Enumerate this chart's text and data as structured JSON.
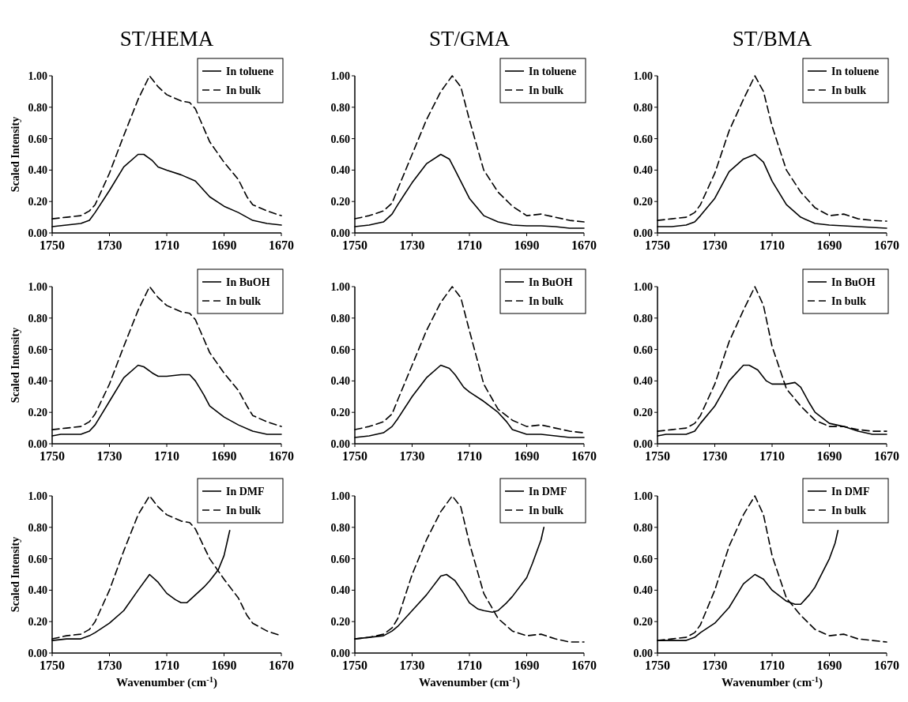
{
  "chart_data": [
    {
      "type": "line",
      "title": "ST/HEMA",
      "ylabel": "Scaled Intensity",
      "xlim": [
        1750,
        1670
      ],
      "xticks": [
        1750,
        1730,
        1710,
        1690,
        1670
      ],
      "ylim": [
        0,
        1
      ],
      "yticks": [
        {
          "value": 0,
          "label": "0.00"
        },
        {
          "value": 0.2,
          "label": "0.20"
        },
        {
          "value": 0.4,
          "label": "0.40"
        },
        {
          "value": 0.6,
          "label": "0.60"
        },
        {
          "value": 0.8,
          "label": "0.80"
        },
        {
          "value": 1,
          "label": "1.00"
        }
      ],
      "legend": "top right",
      "grid": false,
      "marker": "none",
      "series": [
        {
          "name": "In toluene",
          "color": "#000000",
          "line_style": "solid",
          "x": [
            1750,
            1745,
            1740,
            1737,
            1735,
            1730,
            1725,
            1720,
            1718,
            1715,
            1713,
            1710,
            1705,
            1700,
            1697,
            1695,
            1690,
            1685,
            1680,
            1675,
            1670
          ],
          "values": [
            0.04,
            0.05,
            0.06,
            0.08,
            0.13,
            0.27,
            0.42,
            0.5,
            0.5,
            0.46,
            0.42,
            0.4,
            0.37,
            0.33,
            0.27,
            0.23,
            0.17,
            0.13,
            0.08,
            0.06,
            0.05
          ]
        },
        {
          "name": "In bulk",
          "color": "#000000",
          "line_style": "dashed",
          "x": [
            1750,
            1745,
            1740,
            1737,
            1735,
            1730,
            1725,
            1720,
            1716,
            1713,
            1710,
            1705,
            1702,
            1700,
            1695,
            1690,
            1685,
            1682,
            1680,
            1675,
            1670
          ],
          "values": [
            0.09,
            0.1,
            0.11,
            0.14,
            0.18,
            0.38,
            0.62,
            0.85,
            1,
            0.93,
            0.88,
            0.84,
            0.83,
            0.79,
            0.58,
            0.45,
            0.34,
            0.23,
            0.18,
            0.14,
            0.11
          ]
        }
      ]
    },
    {
      "type": "line",
      "title": "ST/GMA",
      "xlim": [
        1750,
        1670
      ],
      "xticks": [
        1750,
        1730,
        1710,
        1690,
        1670
      ],
      "ylim": [
        0,
        1
      ],
      "yticks": [
        {
          "value": 0,
          "label": "0.00"
        },
        {
          "value": 0.2,
          "label": "0.20"
        },
        {
          "value": 0.4,
          "label": "0.40"
        },
        {
          "value": 0.6,
          "label": "0.60"
        },
        {
          "value": 0.8,
          "label": "0.80"
        },
        {
          "value": 1,
          "label": "1.00"
        }
      ],
      "legend": "top right",
      "grid": false,
      "marker": "none",
      "series": [
        {
          "name": "In toluene",
          "color": "#000000",
          "line_style": "solid",
          "x": [
            1750,
            1745,
            1740,
            1737,
            1735,
            1730,
            1725,
            1720,
            1717,
            1715,
            1710,
            1705,
            1700,
            1695,
            1690,
            1685,
            1680,
            1675,
            1670
          ],
          "values": [
            0.04,
            0.05,
            0.07,
            0.12,
            0.18,
            0.32,
            0.44,
            0.5,
            0.47,
            0.4,
            0.22,
            0.11,
            0.07,
            0.05,
            0.045,
            0.045,
            0.04,
            0.03,
            0.03
          ]
        },
        {
          "name": "In bulk",
          "color": "#000000",
          "line_style": "dashed",
          "x": [
            1750,
            1745,
            1740,
            1737,
            1735,
            1730,
            1725,
            1720,
            1716,
            1713,
            1710,
            1705,
            1700,
            1695,
            1690,
            1685,
            1680,
            1675,
            1670
          ],
          "values": [
            0.09,
            0.11,
            0.14,
            0.19,
            0.28,
            0.5,
            0.72,
            0.9,
            1,
            0.93,
            0.72,
            0.4,
            0.26,
            0.17,
            0.11,
            0.12,
            0.1,
            0.08,
            0.07
          ]
        }
      ]
    },
    {
      "type": "line",
      "title": "ST/BMA",
      "xlim": [
        1750,
        1670
      ],
      "xticks": [
        1750,
        1730,
        1710,
        1690,
        1670
      ],
      "ylim": [
        0,
        1
      ],
      "yticks": [
        {
          "value": 0,
          "label": "0.00"
        },
        {
          "value": 0.2,
          "label": "0.20"
        },
        {
          "value": 0.4,
          "label": "0.40"
        },
        {
          "value": 0.6,
          "label": "0.60"
        },
        {
          "value": 0.8,
          "label": "0.80"
        },
        {
          "value": 1,
          "label": "1.00"
        }
      ],
      "legend": "top right",
      "grid": false,
      "marker": "none",
      "series": [
        {
          "name": "In toluene",
          "color": "#000000",
          "line_style": "solid",
          "x": [
            1750,
            1745,
            1740,
            1737,
            1735,
            1730,
            1725,
            1720,
            1716,
            1713,
            1710,
            1705,
            1700,
            1695,
            1690,
            1685,
            1680,
            1675,
            1670
          ],
          "values": [
            0.04,
            0.04,
            0.05,
            0.07,
            0.11,
            0.22,
            0.39,
            0.47,
            0.5,
            0.45,
            0.33,
            0.18,
            0.1,
            0.06,
            0.05,
            0.045,
            0.04,
            0.035,
            0.03
          ]
        },
        {
          "name": "In bulk",
          "color": "#000000",
          "line_style": "dashed",
          "x": [
            1750,
            1745,
            1740,
            1737,
            1735,
            1730,
            1725,
            1720,
            1716,
            1713,
            1710,
            1705,
            1700,
            1695,
            1690,
            1685,
            1680,
            1675,
            1670
          ],
          "values": [
            0.08,
            0.09,
            0.1,
            0.13,
            0.18,
            0.38,
            0.65,
            0.85,
            1,
            0.9,
            0.68,
            0.4,
            0.26,
            0.16,
            0.11,
            0.12,
            0.09,
            0.08,
            0.075
          ]
        }
      ]
    },
    {
      "type": "line",
      "ylabel": "Scaled Intensity",
      "xlim": [
        1750,
        1670
      ],
      "xticks": [
        1750,
        1730,
        1710,
        1690,
        1670
      ],
      "ylim": [
        0,
        1
      ],
      "yticks": [
        {
          "value": 0,
          "label": "0.00"
        },
        {
          "value": 0.2,
          "label": "0.20"
        },
        {
          "value": 0.4,
          "label": "0.40"
        },
        {
          "value": 0.6,
          "label": "0.60"
        },
        {
          "value": 0.8,
          "label": "0.80"
        },
        {
          "value": 1,
          "label": "1.00"
        }
      ],
      "legend": "top right",
      "grid": false,
      "marker": "none",
      "series": [
        {
          "name": "In BuOH",
          "color": "#000000",
          "line_style": "solid",
          "x": [
            1750,
            1747,
            1740,
            1737,
            1735,
            1730,
            1725,
            1720,
            1718,
            1715,
            1713,
            1710,
            1705,
            1702,
            1700,
            1697,
            1695,
            1690,
            1687,
            1685,
            1680,
            1675,
            1670
          ],
          "values": [
            0.05,
            0.06,
            0.06,
            0.08,
            0.12,
            0.27,
            0.42,
            0.5,
            0.49,
            0.45,
            0.43,
            0.43,
            0.44,
            0.44,
            0.4,
            0.31,
            0.24,
            0.17,
            0.14,
            0.12,
            0.08,
            0.06,
            0.06
          ]
        },
        {
          "name": "In bulk",
          "color": "#000000",
          "line_style": "dashed",
          "x": [
            1750,
            1745,
            1740,
            1737,
            1735,
            1730,
            1725,
            1720,
            1716,
            1713,
            1710,
            1705,
            1702,
            1700,
            1695,
            1690,
            1685,
            1682,
            1680,
            1675,
            1670
          ],
          "values": [
            0.09,
            0.1,
            0.11,
            0.14,
            0.19,
            0.38,
            0.62,
            0.85,
            1,
            0.93,
            0.88,
            0.84,
            0.83,
            0.79,
            0.58,
            0.45,
            0.34,
            0.24,
            0.18,
            0.14,
            0.11
          ]
        }
      ]
    },
    {
      "type": "line",
      "xlim": [
        1750,
        1670
      ],
      "xticks": [
        1750,
        1730,
        1710,
        1690,
        1670
      ],
      "ylim": [
        0,
        1
      ],
      "yticks": [
        {
          "value": 0,
          "label": "0.00"
        },
        {
          "value": 0.2,
          "label": "0.20"
        },
        {
          "value": 0.4,
          "label": "0.40"
        },
        {
          "value": 0.6,
          "label": "0.60"
        },
        {
          "value": 0.8,
          "label": "0.80"
        },
        {
          "value": 1,
          "label": "1.00"
        }
      ],
      "legend": "top right",
      "grid": false,
      "marker": "none",
      "series": [
        {
          "name": "In BuOH",
          "color": "#000000",
          "line_style": "solid",
          "x": [
            1750,
            1745,
            1740,
            1737,
            1735,
            1730,
            1725,
            1720,
            1717,
            1715,
            1712,
            1710,
            1705,
            1700,
            1697,
            1695,
            1690,
            1685,
            1680,
            1675,
            1670
          ],
          "values": [
            0.04,
            0.05,
            0.07,
            0.11,
            0.16,
            0.3,
            0.42,
            0.5,
            0.48,
            0.44,
            0.36,
            0.33,
            0.27,
            0.2,
            0.14,
            0.09,
            0.06,
            0.06,
            0.05,
            0.04,
            0.04
          ]
        },
        {
          "name": "In bulk",
          "color": "#000000",
          "line_style": "dashed",
          "x": [
            1750,
            1745,
            1740,
            1737,
            1735,
            1730,
            1725,
            1720,
            1716,
            1713,
            1710,
            1705,
            1700,
            1695,
            1690,
            1685,
            1680,
            1675,
            1670
          ],
          "values": [
            0.09,
            0.11,
            0.14,
            0.19,
            0.28,
            0.5,
            0.72,
            0.9,
            1,
            0.93,
            0.72,
            0.38,
            0.22,
            0.15,
            0.11,
            0.12,
            0.1,
            0.08,
            0.07
          ]
        }
      ]
    },
    {
      "type": "line",
      "xlim": [
        1750,
        1670
      ],
      "xticks": [
        1750,
        1730,
        1710,
        1690,
        1670
      ],
      "ylim": [
        0,
        1
      ],
      "yticks": [
        {
          "value": 0,
          "label": "0.00"
        },
        {
          "value": 0.2,
          "label": "0.20"
        },
        {
          "value": 0.4,
          "label": "0.40"
        },
        {
          "value": 0.6,
          "label": "0.60"
        },
        {
          "value": 0.8,
          "label": "0.80"
        },
        {
          "value": 1,
          "label": "1.00"
        }
      ],
      "legend": "top right",
      "grid": false,
      "marker": "none",
      "series": [
        {
          "name": "In BuOH",
          "color": "#000000",
          "line_style": "solid",
          "x": [
            1750,
            1747,
            1740,
            1737,
            1735,
            1730,
            1725,
            1720,
            1718,
            1715,
            1712,
            1710,
            1705,
            1702,
            1700,
            1697,
            1695,
            1690,
            1685,
            1680,
            1675,
            1670
          ],
          "values": [
            0.05,
            0.06,
            0.06,
            0.08,
            0.13,
            0.24,
            0.4,
            0.5,
            0.5,
            0.47,
            0.4,
            0.38,
            0.38,
            0.39,
            0.36,
            0.26,
            0.2,
            0.13,
            0.11,
            0.08,
            0.06,
            0.06
          ]
        },
        {
          "name": "In bulk",
          "color": "#000000",
          "line_style": "dashed",
          "x": [
            1750,
            1745,
            1740,
            1737,
            1735,
            1730,
            1725,
            1720,
            1716,
            1713,
            1710,
            1705,
            1700,
            1695,
            1690,
            1685,
            1680,
            1675,
            1670
          ],
          "values": [
            0.08,
            0.09,
            0.1,
            0.13,
            0.18,
            0.38,
            0.65,
            0.85,
            1,
            0.88,
            0.62,
            0.35,
            0.24,
            0.15,
            0.11,
            0.11,
            0.09,
            0.08,
            0.08
          ]
        }
      ]
    },
    {
      "type": "line",
      "ylabel": "Scaled Intensity",
      "xlabel": "Wavenumber (cm$^{-1}$)",
      "xlim": [
        1750,
        1670
      ],
      "xticks": [
        1750,
        1730,
        1710,
        1690,
        1670
      ],
      "ylim": [
        0,
        1
      ],
      "yticks": [
        {
          "value": 0,
          "label": "0.00"
        },
        {
          "value": 0.2,
          "label": "0.20"
        },
        {
          "value": 0.4,
          "label": "0.40"
        },
        {
          "value": 0.6,
          "label": "0.60"
        },
        {
          "value": 0.8,
          "label": "0.80"
        },
        {
          "value": 1,
          "label": "1.00"
        }
      ],
      "legend": "top right",
      "grid": false,
      "marker": "none",
      "series": [
        {
          "name": "In DMF",
          "color": "#000000",
          "line_style": "solid",
          "x": [
            1750,
            1745,
            1740,
            1737,
            1735,
            1730,
            1725,
            1720,
            1716,
            1713,
            1710,
            1707,
            1705,
            1703,
            1700,
            1697,
            1695,
            1692,
            1690,
            1688
          ],
          "values": [
            0.08,
            0.09,
            0.09,
            0.11,
            0.13,
            0.19,
            0.27,
            0.4,
            0.5,
            0.45,
            0.38,
            0.34,
            0.32,
            0.32,
            0.37,
            0.42,
            0.46,
            0.53,
            0.62,
            0.78
          ]
        },
        {
          "name": "In bulk",
          "color": "#000000",
          "line_style": "dashed",
          "x": [
            1750,
            1745,
            1740,
            1737,
            1735,
            1730,
            1725,
            1720,
            1716,
            1713,
            1710,
            1705,
            1702,
            1700,
            1695,
            1690,
            1685,
            1682,
            1680,
            1675,
            1670
          ],
          "values": [
            0.09,
            0.11,
            0.12,
            0.15,
            0.2,
            0.4,
            0.65,
            0.88,
            1,
            0.93,
            0.88,
            0.84,
            0.83,
            0.79,
            0.6,
            0.47,
            0.35,
            0.24,
            0.19,
            0.14,
            0.11
          ]
        }
      ]
    },
    {
      "type": "line",
      "xlabel": "Wavenumber (cm$^{-1}$)",
      "xlim": [
        1750,
        1670
      ],
      "xticks": [
        1750,
        1730,
        1710,
        1690,
        1670
      ],
      "ylim": [
        0,
        1
      ],
      "yticks": [
        {
          "value": 0,
          "label": "0.00"
        },
        {
          "value": 0.2,
          "label": "0.20"
        },
        {
          "value": 0.4,
          "label": "0.40"
        },
        {
          "value": 0.6,
          "label": "0.60"
        },
        {
          "value": 0.8,
          "label": "0.80"
        },
        {
          "value": 1,
          "label": "1.00"
        }
      ],
      "legend": "top right",
      "grid": false,
      "marker": "none",
      "series": [
        {
          "name": "In DMF",
          "color": "#000000",
          "line_style": "solid",
          "x": [
            1750,
            1745,
            1740,
            1737,
            1735,
            1730,
            1725,
            1720,
            1718,
            1715,
            1712,
            1710,
            1707,
            1705,
            1702,
            1700,
            1697,
            1695,
            1690,
            1688,
            1685,
            1684
          ],
          "values": [
            0.09,
            0.1,
            0.11,
            0.14,
            0.17,
            0.27,
            0.37,
            0.49,
            0.5,
            0.46,
            0.38,
            0.32,
            0.28,
            0.27,
            0.26,
            0.27,
            0.32,
            0.36,
            0.48,
            0.57,
            0.72,
            0.8
          ]
        },
        {
          "name": "In bulk",
          "color": "#000000",
          "line_style": "dashed",
          "x": [
            1750,
            1745,
            1740,
            1737,
            1735,
            1730,
            1725,
            1720,
            1716,
            1713,
            1710,
            1705,
            1700,
            1695,
            1690,
            1685,
            1680,
            1675,
            1670
          ],
          "values": [
            0.09,
            0.1,
            0.12,
            0.16,
            0.22,
            0.5,
            0.72,
            0.9,
            1,
            0.93,
            0.7,
            0.38,
            0.22,
            0.14,
            0.11,
            0.12,
            0.09,
            0.07,
            0.07
          ]
        }
      ]
    },
    {
      "type": "line",
      "xlabel": "Wavenumber (cm$^{-1}$)",
      "xlim": [
        1750,
        1670
      ],
      "xticks": [
        1750,
        1730,
        1710,
        1690,
        1670
      ],
      "ylim": [
        0,
        1
      ],
      "yticks": [
        {
          "value": 0,
          "label": "0.00"
        },
        {
          "value": 0.2,
          "label": "0.20"
        },
        {
          "value": 0.4,
          "label": "0.40"
        },
        {
          "value": 0.6,
          "label": "0.60"
        },
        {
          "value": 0.8,
          "label": "0.80"
        },
        {
          "value": 1,
          "label": "1.00"
        }
      ],
      "legend": "top right",
      "grid": false,
      "marker": "none",
      "series": [
        {
          "name": "In DMF",
          "color": "#000000",
          "line_style": "solid",
          "x": [
            1750,
            1745,
            1740,
            1737,
            1735,
            1730,
            1725,
            1720,
            1716,
            1713,
            1710,
            1705,
            1702,
            1700,
            1697,
            1695,
            1690,
            1688,
            1687
          ],
          "values": [
            0.08,
            0.08,
            0.08,
            0.1,
            0.13,
            0.19,
            0.29,
            0.44,
            0.5,
            0.47,
            0.4,
            0.33,
            0.31,
            0.31,
            0.37,
            0.42,
            0.6,
            0.7,
            0.78
          ]
        },
        {
          "name": "In bulk",
          "color": "#000000",
          "line_style": "dashed",
          "x": [
            1750,
            1745,
            1740,
            1737,
            1735,
            1730,
            1725,
            1720,
            1716,
            1713,
            1710,
            1705,
            1700,
            1695,
            1690,
            1685,
            1680,
            1675,
            1670
          ],
          "values": [
            0.08,
            0.09,
            0.1,
            0.13,
            0.18,
            0.4,
            0.68,
            0.88,
            1,
            0.88,
            0.62,
            0.35,
            0.24,
            0.15,
            0.11,
            0.12,
            0.09,
            0.08,
            0.07
          ]
        }
      ]
    }
  ]
}
